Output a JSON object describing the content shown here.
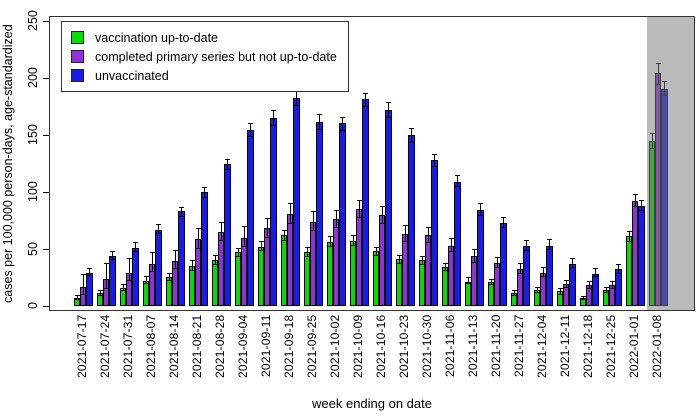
{
  "chart_data": {
    "type": "bar",
    "title": "",
    "xlabel": "week ending on date",
    "ylabel": "cases per 100,000 person-days, age-standardized",
    "ylim": [
      0,
      250
    ],
    "yticks": [
      0,
      50,
      100,
      150,
      200,
      250
    ],
    "grid": false,
    "legend_position": "top-left",
    "categories": [
      "2021-07-17",
      "2021-07-24",
      "2021-07-31",
      "2021-08-07",
      "2021-08-14",
      "2021-08-21",
      "2021-08-28",
      "2021-09-04",
      "2021-09-11",
      "2021-09-18",
      "2021-09-25",
      "2021-10-02",
      "2021-10-09",
      "2021-10-16",
      "2021-10-23",
      "2021-10-30",
      "2021-11-06",
      "2021-11-13",
      "2021-11-20",
      "2021-11-27",
      "2021-12-04",
      "2021-12-11",
      "2021-12-18",
      "2021-12-25",
      "2022-01-01",
      "2022-01-08"
    ],
    "series": [
      {
        "name": "vaccination up-to-date",
        "color": "#00DF00",
        "values": [
          7,
          11,
          16,
          22,
          25,
          35,
          40,
          47,
          52,
          62,
          47,
          56,
          57,
          48,
          41,
          40,
          34,
          21,
          21,
          11,
          14,
          13,
          7,
          14,
          61,
          145
        ],
        "err_lo": [
          5,
          9,
          13,
          19,
          22,
          31,
          36,
          43,
          48,
          57,
          43,
          52,
          53,
          44,
          37,
          36,
          31,
          19,
          18,
          9,
          11,
          10,
          5,
          11,
          56,
          138
        ],
        "err_hi": [
          10,
          14,
          19,
          26,
          29,
          40,
          45,
          51,
          57,
          67,
          52,
          61,
          62,
          52,
          45,
          44,
          38,
          25,
          24,
          14,
          17,
          16,
          9,
          17,
          66,
          152
        ]
      },
      {
        "name": "completed primary series but not up-to-date",
        "color": "#9031DC",
        "values": [
          17,
          24,
          29,
          37,
          39,
          59,
          65,
          60,
          68,
          81,
          74,
          76,
          85,
          80,
          63,
          62,
          53,
          44,
          38,
          32,
          29,
          19,
          18,
          18,
          92,
          204
        ],
        "err_lo": [
          10,
          15,
          22,
          30,
          32,
          50,
          57,
          52,
          60,
          72,
          66,
          68,
          77,
          72,
          56,
          55,
          47,
          38,
          33,
          28,
          25,
          16,
          15,
          15,
          87,
          194
        ],
        "err_hi": [
          28,
          38,
          42,
          47,
          49,
          68,
          74,
          70,
          77,
          90,
          83,
          84,
          93,
          88,
          71,
          69,
          60,
          50,
          43,
          38,
          34,
          23,
          22,
          22,
          98,
          213
        ]
      },
      {
        "name": "unvaccinated",
        "color": "#1A1AEE",
        "values": [
          29,
          44,
          51,
          67,
          83,
          100,
          124,
          154,
          165,
          182,
          161,
          160,
          181,
          172,
          150,
          128,
          109,
          84,
          73,
          53,
          53,
          37,
          28,
          32,
          88,
          190
        ],
        "err_lo": [
          26,
          40,
          47,
          63,
          78,
          95,
          119,
          148,
          158,
          175,
          154,
          153,
          174,
          165,
          143,
          122,
          104,
          79,
          68,
          48,
          49,
          33,
          25,
          28,
          83,
          184
        ],
        "err_hi": [
          33,
          48,
          56,
          72,
          87,
          104,
          129,
          160,
          172,
          189,
          168,
          166,
          187,
          179,
          156,
          133,
          115,
          90,
          78,
          58,
          59,
          42,
          33,
          37,
          93,
          197
        ]
      }
    ],
    "highlight_band": {
      "categories_covered": [
        "2022-01-08"
      ],
      "color": "#BEBEBE"
    }
  }
}
